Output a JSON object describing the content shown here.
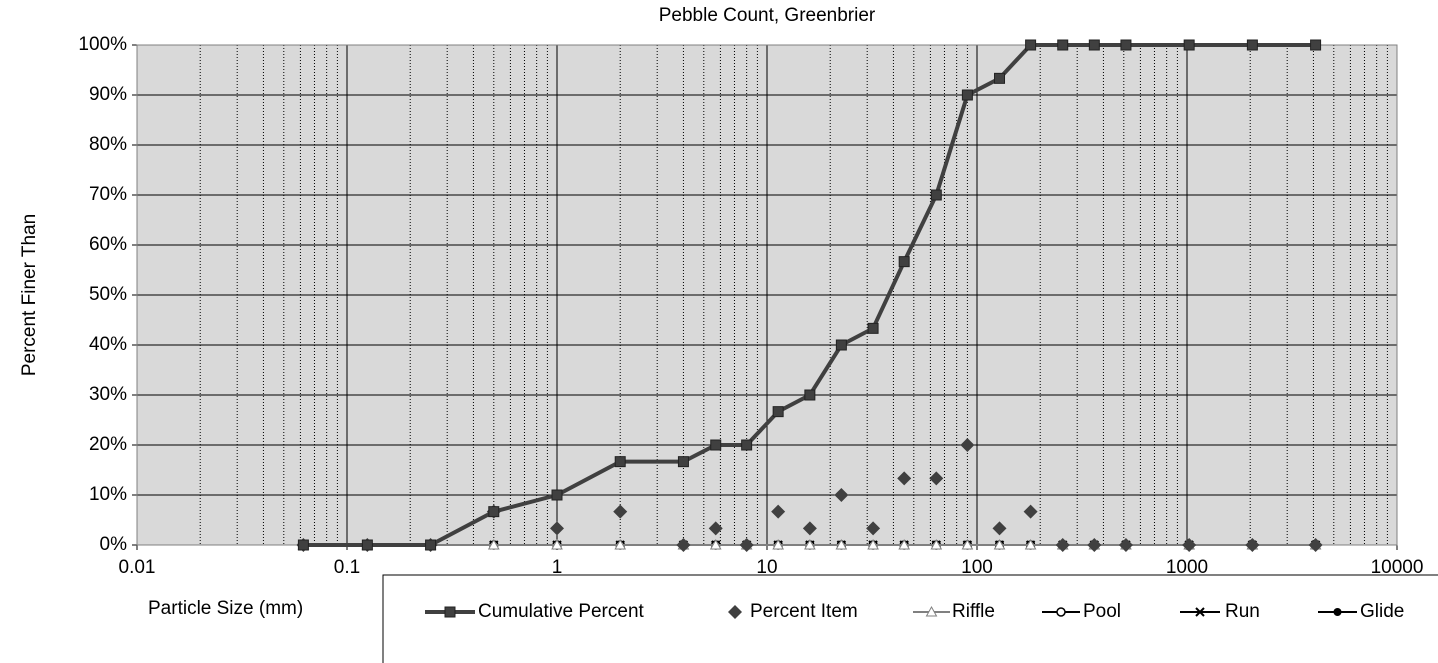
{
  "chart_data": {
    "type": "line",
    "title": "Pebble Count,  Greenbrier",
    "x_label": "Particle Size (mm)",
    "y_label": "Percent Finer Than",
    "x_scale": "log",
    "x": [
      0.062,
      0.125,
      0.25,
      0.5,
      1,
      2,
      4,
      5.7,
      8,
      11.3,
      16,
      22.6,
      32,
      45,
      64,
      90,
      128,
      180,
      256,
      362,
      512,
      1024,
      2048,
      4096
    ],
    "xlim": [
      0.01,
      10000
    ],
    "xticks": [
      0.01,
      0.1,
      1,
      10,
      100,
      1000,
      10000
    ],
    "ylim": [
      0,
      100
    ],
    "yticks": [
      {
        "value": 0,
        "label": "0%"
      },
      {
        "value": 10,
        "label": "10%"
      },
      {
        "value": 20,
        "label": "20%"
      },
      {
        "value": 30,
        "label": "30%"
      },
      {
        "value": 40,
        "label": "40%"
      },
      {
        "value": 50,
        "label": "50%"
      },
      {
        "value": 60,
        "label": "60%"
      },
      {
        "value": 70,
        "label": "70%"
      },
      {
        "value": 80,
        "label": "80%"
      },
      {
        "value": 90,
        "label": "90%"
      },
      {
        "value": 100,
        "label": "100%"
      }
    ],
    "grid": true,
    "legend": "bottom",
    "series": [
      {
        "name": "Cumulative Percent",
        "color": "#404040",
        "marker": "square",
        "line": true,
        "values": [
          0,
          0,
          0,
          6.67,
          10,
          16.67,
          16.67,
          20,
          20,
          26.67,
          30,
          40,
          43.33,
          56.67,
          70,
          90,
          93.33,
          100,
          100,
          100,
          100,
          100,
          100,
          100
        ]
      },
      {
        "name": "Percent Item",
        "color": "#404040",
        "marker": "diamond",
        "line": false,
        "values": [
          0,
          0,
          0,
          6.67,
          3.33,
          6.67,
          0,
          3.33,
          0,
          6.67,
          3.33,
          10,
          3.33,
          13.33,
          13.33,
          20,
          3.33,
          6.67,
          0,
          0,
          0,
          0,
          0,
          0
        ]
      },
      {
        "name": "Riffle",
        "color": "#808080",
        "marker": "triangle",
        "line": true,
        "values": [
          0,
          0,
          0,
          0,
          0,
          0,
          0,
          0,
          0,
          0,
          0,
          0,
          0,
          0,
          0,
          0,
          0,
          0,
          0,
          0,
          0,
          0,
          0,
          0
        ]
      },
      {
        "name": "Pool",
        "color": "#000000",
        "marker": "circle-open",
        "line": true,
        "values": [
          0,
          0,
          0,
          0,
          0,
          0,
          0,
          0,
          0,
          0,
          0,
          0,
          0,
          0,
          0,
          0,
          0,
          0,
          0,
          0,
          0,
          0,
          0,
          0
        ]
      },
      {
        "name": "Run",
        "color": "#000000",
        "marker": "x",
        "line": true,
        "values": [
          0,
          0,
          0,
          0,
          0,
          0,
          0,
          0,
          0,
          0,
          0,
          0,
          0,
          0,
          0,
          0,
          0,
          0,
          0,
          0,
          0,
          0,
          0,
          0
        ]
      },
      {
        "name": "Glide",
        "color": "#000000",
        "marker": "circle",
        "line": true,
        "values": [
          0,
          0,
          0,
          0,
          0,
          0,
          0,
          0,
          0,
          0,
          0,
          0,
          0,
          0,
          0,
          0,
          0,
          0,
          0,
          0,
          0,
          0,
          0,
          0
        ]
      }
    ]
  }
}
